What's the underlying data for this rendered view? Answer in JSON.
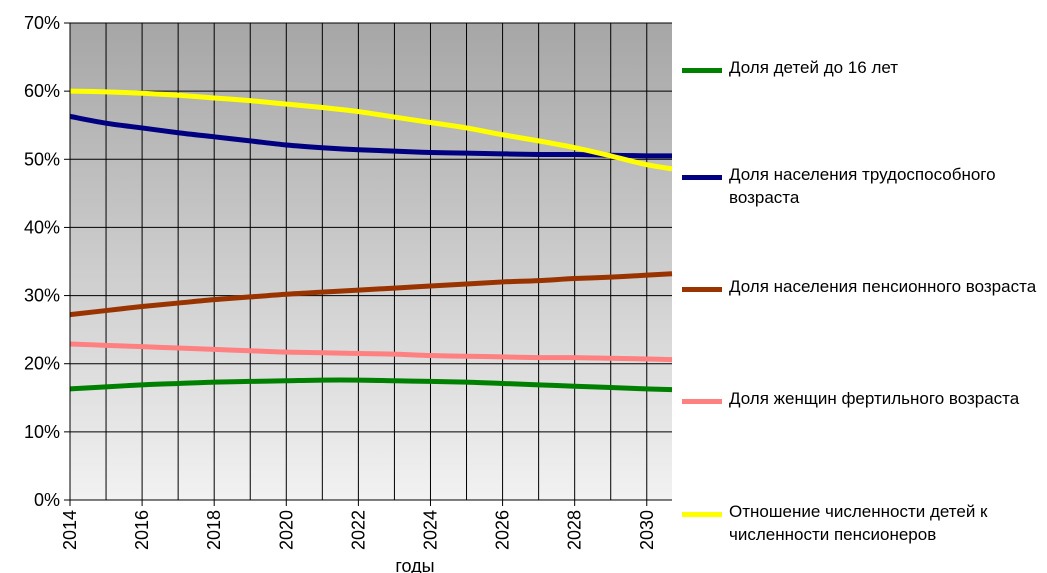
{
  "chart_data": {
    "type": "line",
    "xlabel": "годы",
    "ylabel": "",
    "xlim": [
      2014,
      2030.7
    ],
    "ylim": [
      0,
      70
    ],
    "x_ticks": [
      2014,
      2016,
      2018,
      2020,
      2022,
      2024,
      2026,
      2028,
      2030
    ],
    "x_tick_labels": [
      "2014",
      "2016",
      "2018",
      "2020",
      "2022",
      "2024",
      "2026",
      "2028",
      "2030"
    ],
    "y_ticks": [
      0,
      10,
      20,
      30,
      40,
      50,
      60,
      70
    ],
    "y_tick_labels": [
      "0%",
      "10%",
      "20%",
      "30%",
      "40%",
      "50%",
      "60%",
      "70%"
    ],
    "grid": true,
    "legend_position": "right",
    "x": [
      2014,
      2015,
      2016,
      2017,
      2018,
      2019,
      2020,
      2021,
      2022,
      2023,
      2024,
      2025,
      2026,
      2027,
      2028,
      2029,
      2030,
      2030.7
    ],
    "series": [
      {
        "name": "Доля детей до 16 лет",
        "color": "#008000",
        "values": [
          16.3,
          16.6,
          16.9,
          17.1,
          17.3,
          17.4,
          17.5,
          17.6,
          17.6,
          17.5,
          17.4,
          17.3,
          17.1,
          16.9,
          16.7,
          16.5,
          16.3,
          16.2
        ]
      },
      {
        "name": "Доля населения трудоспособного возраста",
        "color": "#000080",
        "values": [
          56.3,
          55.3,
          54.6,
          53.9,
          53.3,
          52.7,
          52.1,
          51.7,
          51.4,
          51.2,
          51.0,
          50.9,
          50.8,
          50.7,
          50.7,
          50.6,
          50.5,
          50.5
        ]
      },
      {
        "name": "Доля населения пенсионного возраста",
        "color": "#993300",
        "values": [
          27.2,
          27.8,
          28.4,
          28.9,
          29.4,
          29.8,
          30.2,
          30.5,
          30.8,
          31.1,
          31.4,
          31.7,
          32.0,
          32.2,
          32.5,
          32.7,
          33.0,
          33.2
        ]
      },
      {
        "name": "Доля женщин фертильного возраста",
        "color": "#ff8080",
        "values": [
          22.9,
          22.7,
          22.5,
          22.3,
          22.1,
          21.9,
          21.7,
          21.6,
          21.5,
          21.4,
          21.2,
          21.1,
          21.0,
          20.9,
          20.9,
          20.8,
          20.7,
          20.6
        ]
      },
      {
        "name": "Отношение численности детей к численности пенсионеров",
        "color": "#ffff00",
        "values": [
          60.0,
          59.9,
          59.7,
          59.4,
          59.0,
          58.6,
          58.1,
          57.6,
          57.0,
          56.2,
          55.4,
          54.6,
          53.6,
          52.7,
          51.7,
          50.5,
          49.2,
          48.6
        ]
      }
    ]
  }
}
